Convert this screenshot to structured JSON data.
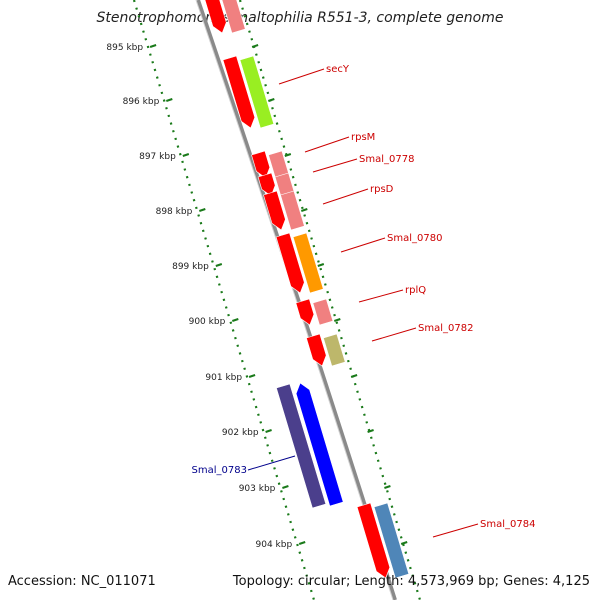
{
  "title": "Stenotrophomonas maltophilia R551-3, complete genome",
  "accession": "Accession: NC_011071",
  "summary": "Topology: circular; Length: 4,573,969 bp; Genes: 4,125",
  "ruler": {
    "tick_color": "#1a7a1a",
    "labels": [
      "895 kbp",
      "896 kbp",
      "897 kbp",
      "898 kbp",
      "899 kbp",
      "900 kbp",
      "901 kbp",
      "902 kbp",
      "903 kbp",
      "904 kbp"
    ]
  },
  "genes": [
    {
      "name": "secY",
      "color": "#cc0000",
      "strand": "+"
    },
    {
      "name": "rpsM",
      "color": "#cc0000",
      "strand": "+"
    },
    {
      "name": "Smal_0778",
      "color": "#cc0000",
      "strand": "+"
    },
    {
      "name": "rpsD",
      "color": "#cc0000",
      "strand": "+"
    },
    {
      "name": "Smal_0780",
      "color": "#cc0000",
      "strand": "+"
    },
    {
      "name": "rplQ",
      "color": "#cc0000",
      "strand": "+"
    },
    {
      "name": "Smal_0782",
      "color": "#cc0000",
      "strand": "+"
    },
    {
      "name": "Smal_0783",
      "color": "#00008b",
      "strand": "-"
    },
    {
      "name": "Smal_0784",
      "color": "#cc0000",
      "strand": "+"
    }
  ],
  "colors": {
    "backbone": "#8a8a8a",
    "cds_forward": "#ff0000",
    "cds_reverse": "#0000ff",
    "cog_light_red": "#f08080",
    "cog_green": "#99ee22",
    "cog_orange": "#ff9900",
    "cog_khaki": "#bdb76b",
    "cog_purple": "#4b3f8c",
    "cog_steel": "#4f86b8"
  }
}
